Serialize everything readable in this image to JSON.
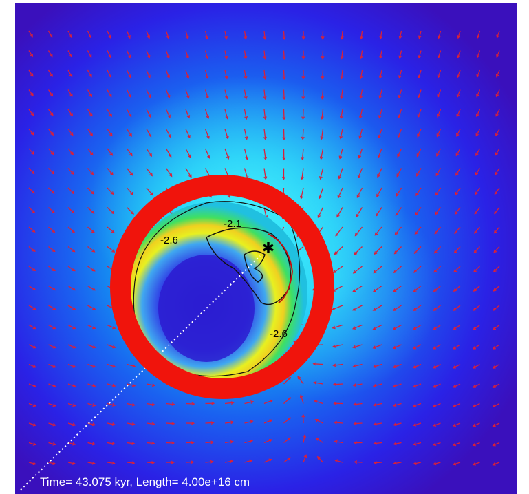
{
  "caption": "Time= 43.075 kyr, Length= 4.00e+16 cm",
  "contour_labels": [
    "-2.6",
    "-2.1",
    "-2.6"
  ]
}
